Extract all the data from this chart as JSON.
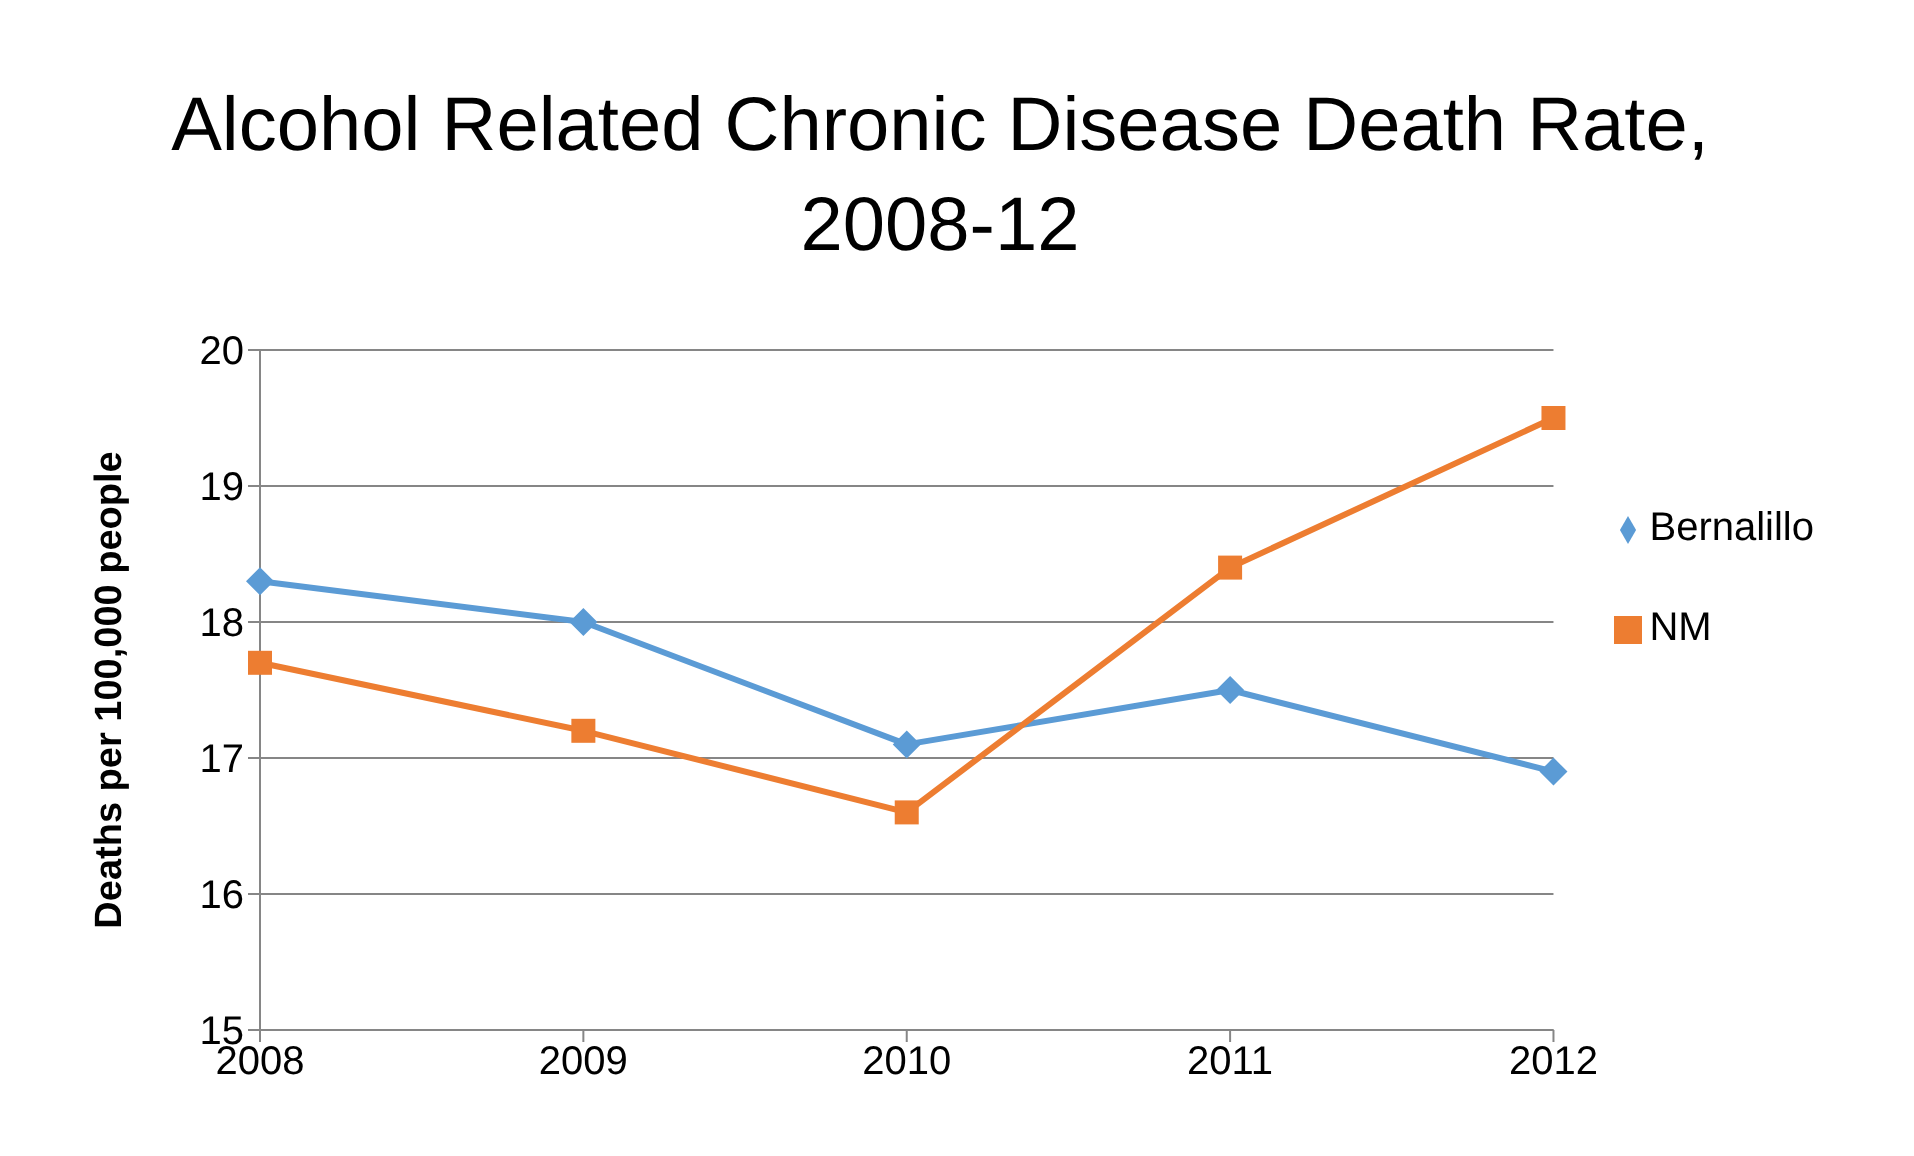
{
  "chart_data": {
    "type": "line",
    "title": "Alcohol Related Chronic Disease Death Rate, 2008-12",
    "ylabel": "Deaths per 100,000 people",
    "categories": [
      "2008",
      "2009",
      "2010",
      "2011",
      "2012"
    ],
    "series": [
      {
        "name": "Bernalillo",
        "color": "#5b9bd5",
        "marker": "diamond",
        "values": [
          18.3,
          18.0,
          17.1,
          17.5,
          16.9
        ]
      },
      {
        "name": "NM",
        "color": "#ed7d31",
        "marker": "square",
        "values": [
          17.7,
          17.2,
          16.6,
          18.4,
          19.5
        ]
      }
    ],
    "ylim": [
      15,
      20
    ],
    "yticks": [
      15,
      16,
      17,
      18,
      19,
      20
    ],
    "grid": "y",
    "legend": "right"
  }
}
